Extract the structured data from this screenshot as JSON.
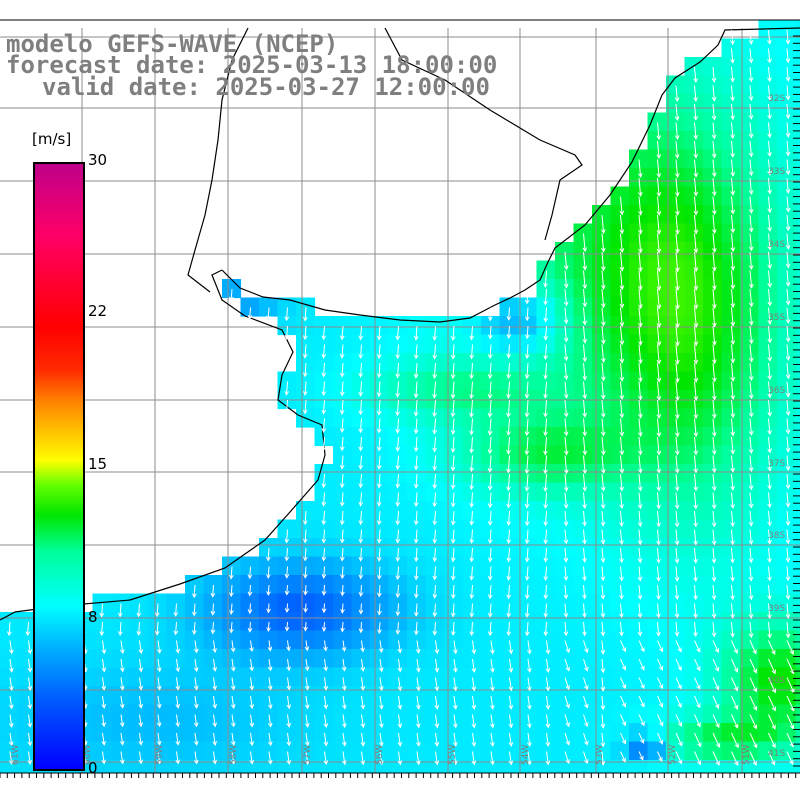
{
  "title": {
    "line1": "modelo GEFS-WAVE (NCEP)",
    "line2": "forecast date: 2025-03-13 18:00:00",
    "line3": "valid date: 2025-03-27 12:00:00"
  },
  "colorbar": {
    "unit": "[m/s]",
    "ticks": [
      "30",
      "22",
      "15",
      "8",
      "0"
    ],
    "tick_values": [
      30,
      22,
      15,
      8,
      0
    ],
    "range": [
      0,
      30
    ],
    "colors": [
      "#0000ff",
      "#0060ff",
      "#00b0ff",
      "#00ffff",
      "#00ff99",
      "#00e600",
      "#66ff00",
      "#ffff00",
      "#ff7f00",
      "#ff0000",
      "#c0008a"
    ]
  },
  "lat_labels": [
    "32S",
    "33S",
    "34S",
    "35S",
    "36S",
    "37S",
    "38S",
    "39S",
    "40S",
    "41S"
  ],
  "lon_labels": [
    "61W",
    "60W",
    "59W",
    "58W",
    "57W",
    "56W",
    "55W",
    "54W",
    "53W",
    "52W",
    "51W"
  ],
  "colors": {
    "land": "#ffffff",
    "grid": "#8c8c8c",
    "coast": "#000000",
    "arrows": "#ffffff",
    "title": "#7f7f7f"
  }
}
